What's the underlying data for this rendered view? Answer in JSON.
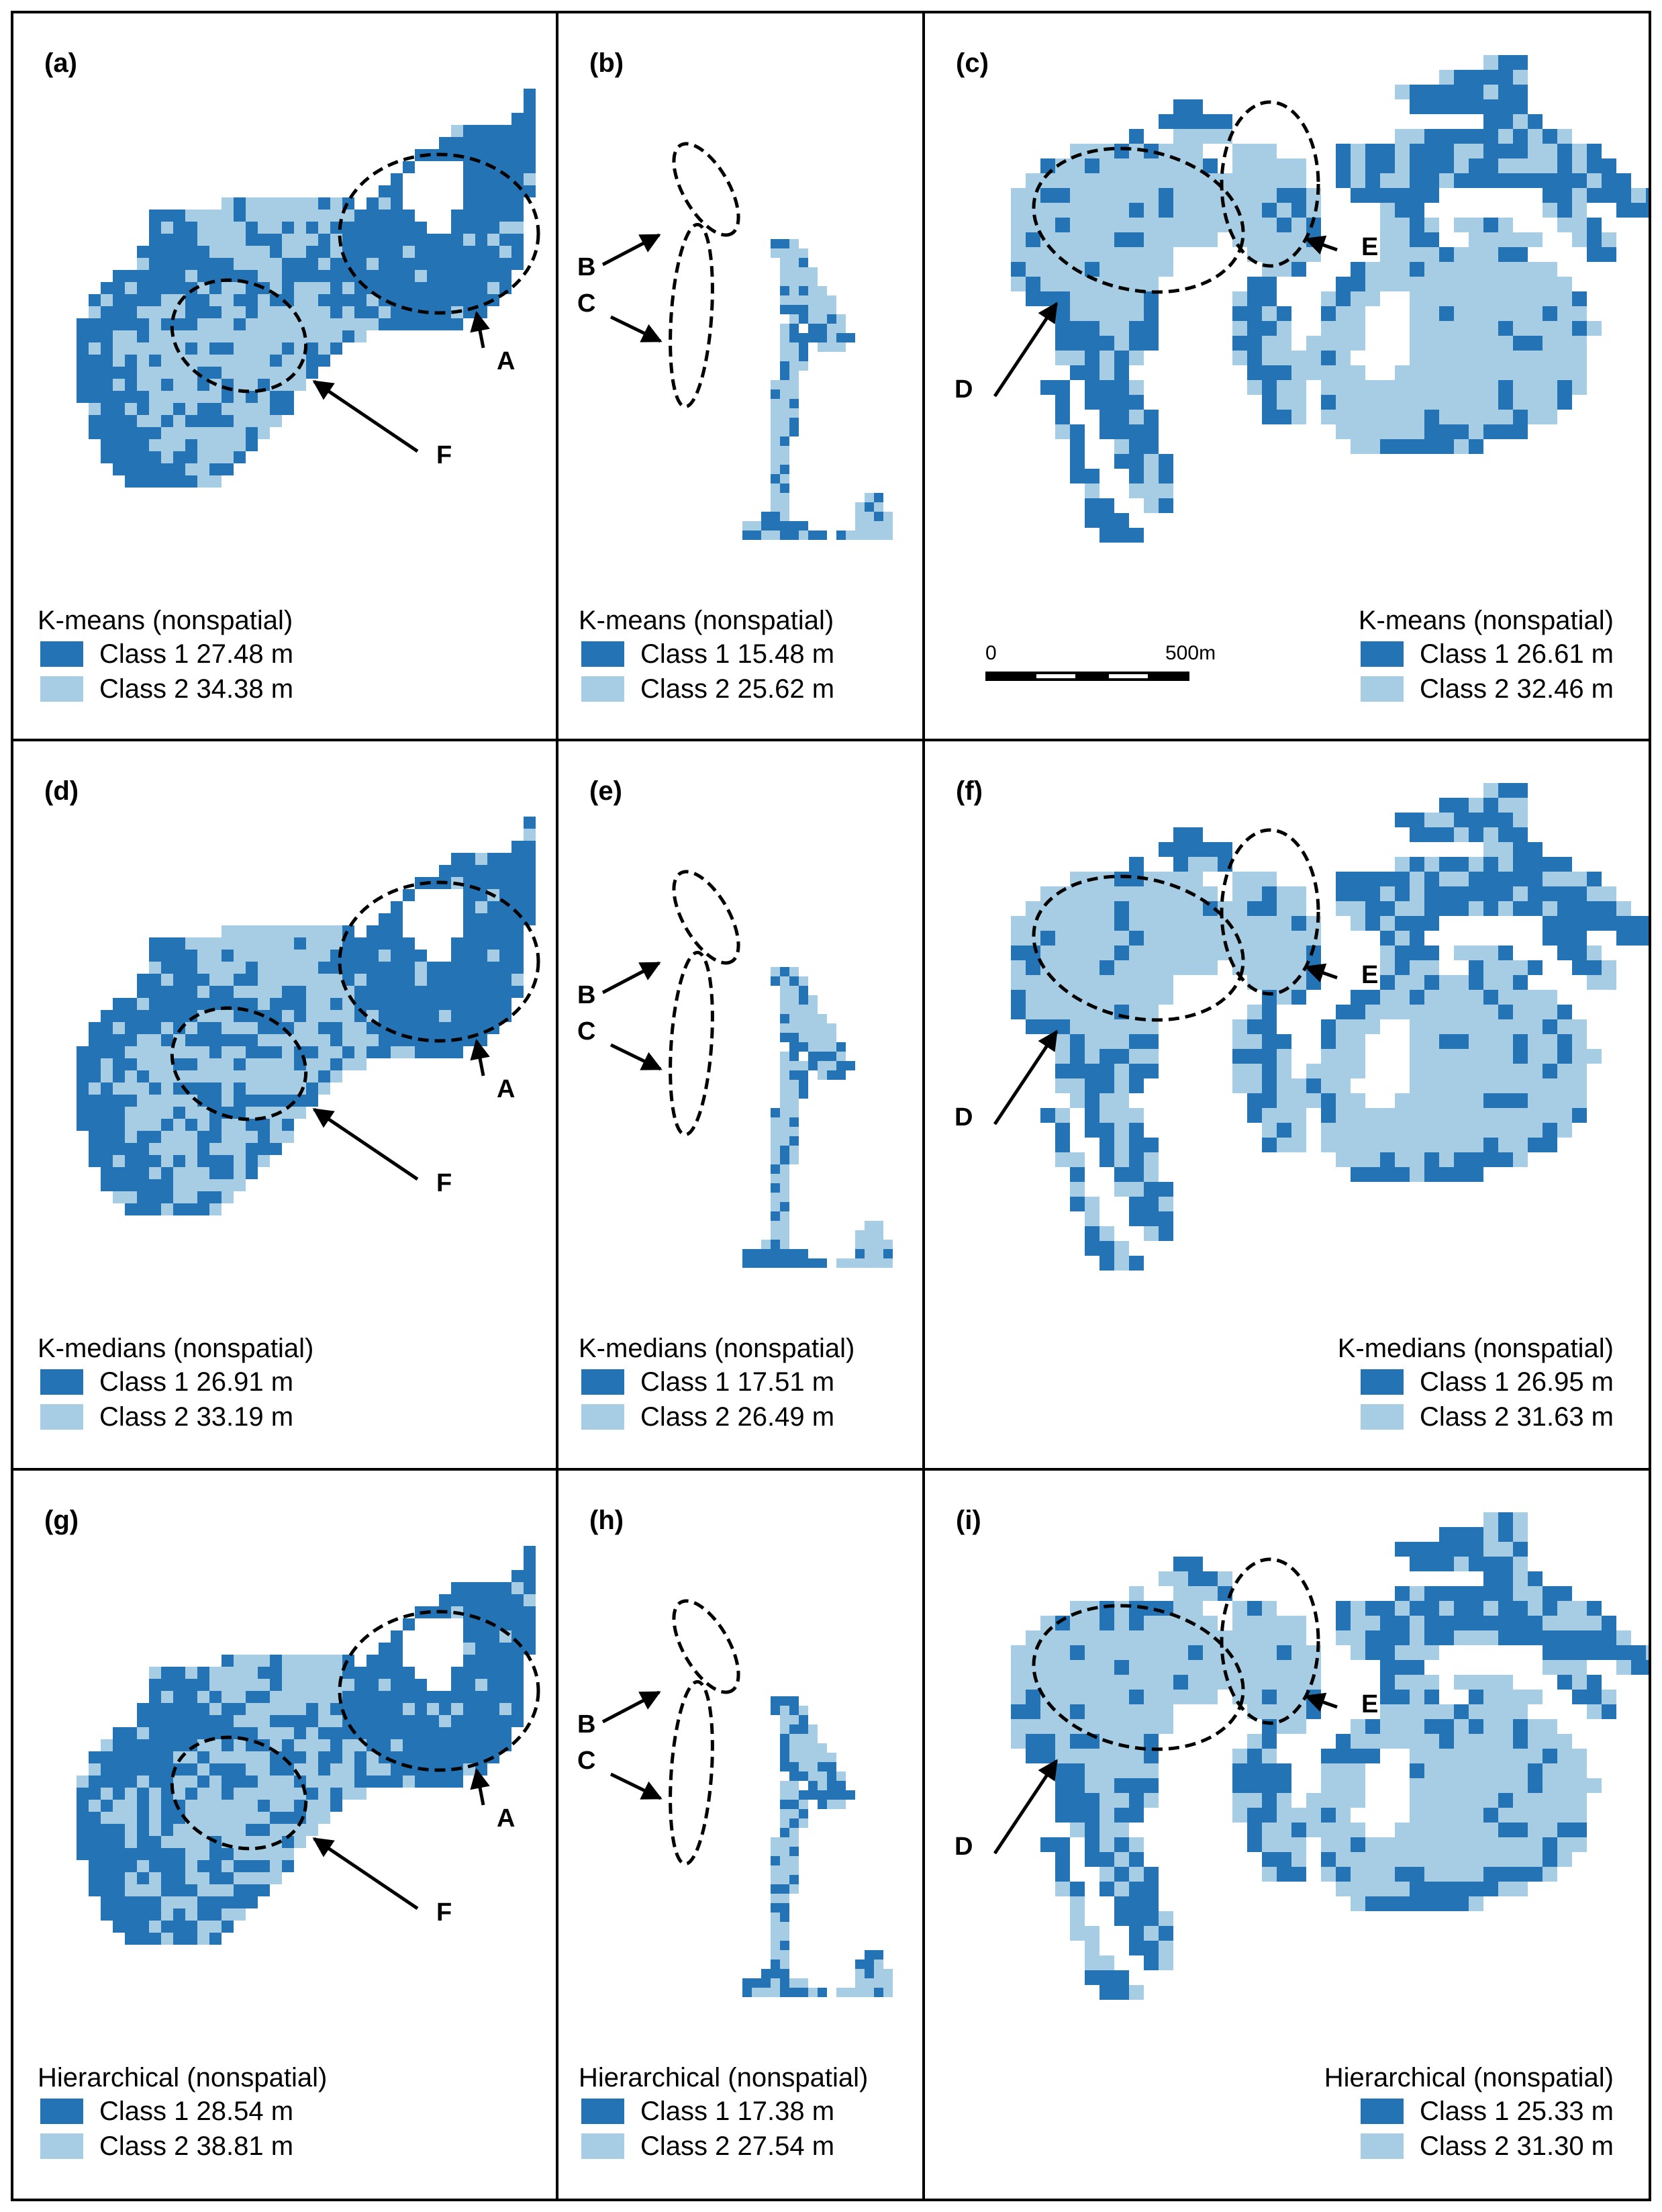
{
  "colors": {
    "class1": "#2474b5",
    "class2": "#a6cde3",
    "line": "#000000"
  },
  "scale_bar": {
    "start_label": "0",
    "end_label": "500",
    "unit": "m"
  },
  "panels": [
    {
      "id": "a",
      "label": "(a)",
      "map": "A",
      "method": "K-means (nonspatial)",
      "class1": {
        "label": "Class 1",
        "value": "27.48 m"
      },
      "class2": {
        "label": "Class 2",
        "value": "34.38 m"
      },
      "annotations": [
        "A",
        "F"
      ]
    },
    {
      "id": "b",
      "label": "(b)",
      "map": "B",
      "method": "K-means (nonspatial)",
      "class1": {
        "label": "Class 1",
        "value": "15.48 m"
      },
      "class2": {
        "label": "Class 2",
        "value": "25.62 m"
      },
      "annotations": [
        "B",
        "C"
      ]
    },
    {
      "id": "c",
      "label": "(c)",
      "map": "C",
      "method": "K-means (nonspatial)",
      "class1": {
        "label": "Class 1",
        "value": "26.61 m"
      },
      "class2": {
        "label": "Class 2",
        "value": "32.46 m"
      },
      "annotations": [
        "D",
        "E"
      ]
    },
    {
      "id": "d",
      "label": "(d)",
      "map": "A",
      "method": "K-medians (nonspatial)",
      "class1": {
        "label": "Class 1",
        "value": "26.91 m"
      },
      "class2": {
        "label": "Class 2",
        "value": "33.19 m"
      },
      "annotations": [
        "A",
        "F"
      ]
    },
    {
      "id": "e",
      "label": "(e)",
      "map": "B",
      "method": "K-medians (nonspatial)",
      "class1": {
        "label": "Class 1",
        "value": "17.51 m"
      },
      "class2": {
        "label": "Class 2",
        "value": "26.49 m"
      },
      "annotations": [
        "B",
        "C"
      ]
    },
    {
      "id": "f",
      "label": "(f)",
      "map": "C",
      "method": "K-medians (nonspatial)",
      "class1": {
        "label": "Class 1",
        "value": "26.95 m"
      },
      "class2": {
        "label": "Class 2",
        "value": "31.63 m"
      },
      "annotations": [
        "D",
        "E"
      ]
    },
    {
      "id": "g",
      "label": "(g)",
      "map": "A",
      "method": "Hierarchical (nonspatial)",
      "class1": {
        "label": "Class 1",
        "value": "28.54 m"
      },
      "class2": {
        "label": "Class 2",
        "value": "38.81 m"
      },
      "annotations": [
        "A",
        "F"
      ]
    },
    {
      "id": "h",
      "label": "(h)",
      "map": "B",
      "method": "Hierarchical (nonspatial)",
      "class1": {
        "label": "Class 1",
        "value": "17.38 m"
      },
      "class2": {
        "label": "Class 2",
        "value": "27.54 m"
      },
      "annotations": [
        "B",
        "C"
      ]
    },
    {
      "id": "i",
      "label": "(i)",
      "map": "C",
      "method": "Hierarchical (nonspatial)",
      "class1": {
        "label": "Class 1",
        "value": "25.33 m"
      },
      "class2": {
        "label": "Class 2",
        "value": "31.30 m"
      },
      "annotations": [
        "D",
        "E"
      ]
    }
  ]
}
